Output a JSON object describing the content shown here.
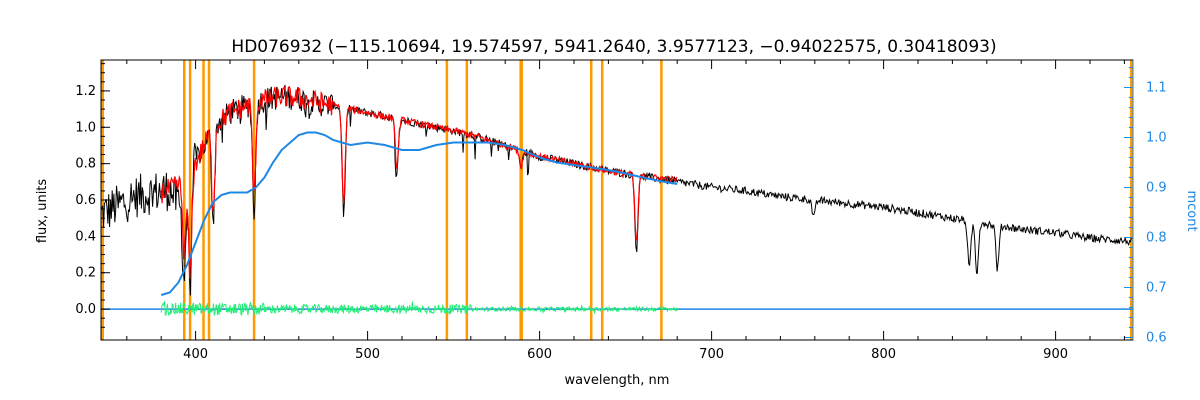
{
  "chart_data": {
    "type": "line",
    "title": "HD076932   (−115.10694, 19.574597, 5941.2640, 3.9577123, −0.94022575, 0.30418093)",
    "xlabel": "wavelength, nm",
    "ylabel": "flux, units",
    "y2label": "mcont",
    "xlim": [
      345,
      945
    ],
    "ylim": [
      -0.17,
      1.37
    ],
    "y2lim": [
      0.595,
      1.155
    ],
    "x_ticks": [
      400,
      500,
      600,
      700,
      800,
      900
    ],
    "y_ticks": [
      0.0,
      0.2,
      0.4,
      0.6,
      0.8,
      1.0,
      1.2
    ],
    "y_tick_labels": [
      "0.0",
      "0.2",
      "0.4",
      "0.6",
      "0.8",
      "1.0",
      "1.2"
    ],
    "y2_ticks": [
      0.6,
      0.7,
      0.8,
      0.9,
      1.0,
      1.1
    ],
    "y2_tick_labels": [
      "0.6",
      "0.7",
      "0.8",
      "0.9",
      "1.0",
      "1.1"
    ],
    "grid": false,
    "colors": {
      "observed": "#000000",
      "model": "#ff0000",
      "residual": "#22ee77",
      "continuum": "#1e88e5",
      "marker_lines": "#ff9900"
    },
    "marker_lines": [
      393.4,
      396.8,
      404.6,
      407.8,
      434.0,
      546.1,
      557.7,
      589.0,
      589.6,
      630.0,
      636.4,
      670.8
    ],
    "series": [
      {
        "role": "observed",
        "x": [
          345,
          355,
          365,
          375,
          385,
          392,
          396,
          400,
          405,
          410,
          420,
          430,
          440,
          450,
          460,
          470,
          480,
          490,
          500,
          520,
          540,
          560,
          580,
          600,
          620,
          640,
          660,
          680,
          700,
          720,
          740,
          760,
          780,
          800,
          820,
          840,
          860,
          880,
          900,
          920,
          935,
          945
        ],
        "y": [
          0.52,
          0.57,
          0.62,
          0.64,
          0.66,
          0.55,
          0.75,
          0.82,
          0.9,
          1.0,
          1.08,
          1.12,
          1.15,
          1.17,
          1.16,
          1.13,
          1.12,
          1.1,
          1.08,
          1.04,
          1.0,
          0.96,
          0.9,
          0.84,
          0.8,
          0.76,
          0.73,
          0.7,
          0.67,
          0.65,
          0.62,
          0.6,
          0.58,
          0.56,
          0.53,
          0.5,
          0.47,
          0.44,
          0.42,
          0.39,
          0.38,
          0.37
        ]
      },
      {
        "role": "model",
        "x": [
          380,
          390,
          396,
          400,
          405,
          410,
          420,
          430,
          440,
          450,
          460,
          470,
          480,
          500,
          520,
          540,
          560,
          580,
          600,
          620,
          640,
          660,
          680
        ],
        "y": [
          0.64,
          0.68,
          0.7,
          0.8,
          0.9,
          1.0,
          1.08,
          1.12,
          1.15,
          1.17,
          1.16,
          1.14,
          1.12,
          1.08,
          1.04,
          1.0,
          0.96,
          0.9,
          0.84,
          0.8,
          0.76,
          0.73,
          0.71
        ]
      },
      {
        "role": "continuum",
        "axis": "right",
        "x": [
          380,
          385,
          390,
          395,
          400,
          405,
          410,
          415,
          420,
          425,
          430,
          435,
          440,
          445,
          450,
          455,
          460,
          465,
          470,
          475,
          480,
          490,
          500,
          510,
          520,
          530,
          540,
          550,
          560,
          570,
          580,
          590,
          600,
          610,
          620,
          630,
          640,
          650,
          660,
          670,
          680
        ],
        "y": [
          0.685,
          0.69,
          0.71,
          0.745,
          0.79,
          0.835,
          0.87,
          0.885,
          0.89,
          0.89,
          0.89,
          0.9,
          0.92,
          0.95,
          0.975,
          0.99,
          1.005,
          1.01,
          1.01,
          1.005,
          0.995,
          0.985,
          0.99,
          0.985,
          0.975,
          0.975,
          0.985,
          0.99,
          0.99,
          0.99,
          0.985,
          0.975,
          0.96,
          0.95,
          0.945,
          0.94,
          0.935,
          0.928,
          0.92,
          0.913,
          0.907
        ]
      },
      {
        "role": "residual",
        "x": [
          380,
          680
        ],
        "y": [
          0.0,
          0.0
        ]
      },
      {
        "role": "continuum-baseline",
        "x": [
          345,
          380,
          680,
          945
        ],
        "y": [
          0.0,
          0.0,
          0.0,
          0.0
        ]
      }
    ],
    "absorption_lines": [
      {
        "x": 393.4,
        "y": 0.18
      },
      {
        "x": 396.8,
        "y": 0.16
      },
      {
        "x": 410.2,
        "y": 0.5
      },
      {
        "x": 434.0,
        "y": 0.55
      },
      {
        "x": 486.1,
        "y": 0.52
      },
      {
        "x": 517.0,
        "y": 0.75
      },
      {
        "x": 589.2,
        "y": 0.78
      },
      {
        "x": 656.3,
        "y": 0.32
      },
      {
        "x": 759.4,
        "y": 0.5
      },
      {
        "x": 849.8,
        "y": 0.22
      },
      {
        "x": 854.2,
        "y": 0.2
      },
      {
        "x": 866.2,
        "y": 0.22
      }
    ]
  }
}
